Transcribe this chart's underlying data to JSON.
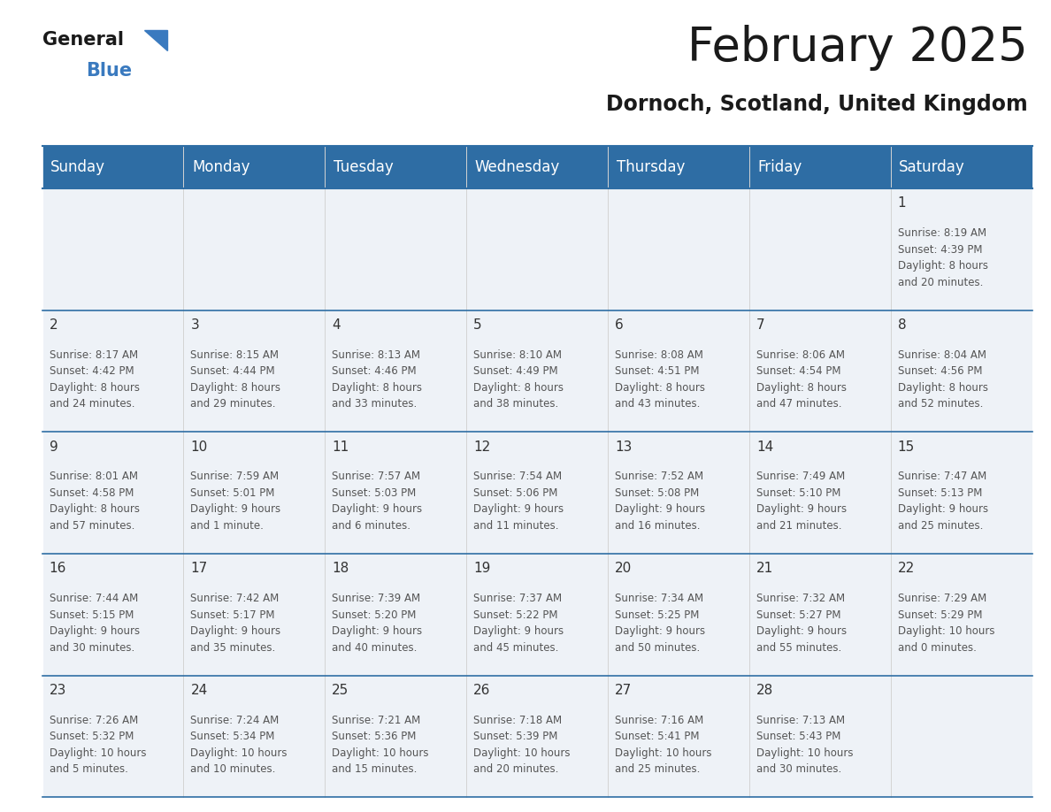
{
  "title": "February 2025",
  "subtitle": "Dornoch, Scotland, United Kingdom",
  "header_color": "#2e6da4",
  "header_text_color": "#ffffff",
  "cell_bg_light": "#eef2f7",
  "cell_bg_white": "#ffffff",
  "border_color": "#2e6da4",
  "text_color": "#333333",
  "info_color": "#555555",
  "day_headers": [
    "Sunday",
    "Monday",
    "Tuesday",
    "Wednesday",
    "Thursday",
    "Friday",
    "Saturday"
  ],
  "title_fontsize": 38,
  "subtitle_fontsize": 17,
  "header_fontsize": 12,
  "cell_num_fontsize": 11,
  "cell_text_fontsize": 8.5,
  "weeks": [
    [
      {
        "day": null,
        "info": null
      },
      {
        "day": null,
        "info": null
      },
      {
        "day": null,
        "info": null
      },
      {
        "day": null,
        "info": null
      },
      {
        "day": null,
        "info": null
      },
      {
        "day": null,
        "info": null
      },
      {
        "day": 1,
        "info": "Sunrise: 8:19 AM\nSunset: 4:39 PM\nDaylight: 8 hours\nand 20 minutes."
      }
    ],
    [
      {
        "day": 2,
        "info": "Sunrise: 8:17 AM\nSunset: 4:42 PM\nDaylight: 8 hours\nand 24 minutes."
      },
      {
        "day": 3,
        "info": "Sunrise: 8:15 AM\nSunset: 4:44 PM\nDaylight: 8 hours\nand 29 minutes."
      },
      {
        "day": 4,
        "info": "Sunrise: 8:13 AM\nSunset: 4:46 PM\nDaylight: 8 hours\nand 33 minutes."
      },
      {
        "day": 5,
        "info": "Sunrise: 8:10 AM\nSunset: 4:49 PM\nDaylight: 8 hours\nand 38 minutes."
      },
      {
        "day": 6,
        "info": "Sunrise: 8:08 AM\nSunset: 4:51 PM\nDaylight: 8 hours\nand 43 minutes."
      },
      {
        "day": 7,
        "info": "Sunrise: 8:06 AM\nSunset: 4:54 PM\nDaylight: 8 hours\nand 47 minutes."
      },
      {
        "day": 8,
        "info": "Sunrise: 8:04 AM\nSunset: 4:56 PM\nDaylight: 8 hours\nand 52 minutes."
      }
    ],
    [
      {
        "day": 9,
        "info": "Sunrise: 8:01 AM\nSunset: 4:58 PM\nDaylight: 8 hours\nand 57 minutes."
      },
      {
        "day": 10,
        "info": "Sunrise: 7:59 AM\nSunset: 5:01 PM\nDaylight: 9 hours\nand 1 minute."
      },
      {
        "day": 11,
        "info": "Sunrise: 7:57 AM\nSunset: 5:03 PM\nDaylight: 9 hours\nand 6 minutes."
      },
      {
        "day": 12,
        "info": "Sunrise: 7:54 AM\nSunset: 5:06 PM\nDaylight: 9 hours\nand 11 minutes."
      },
      {
        "day": 13,
        "info": "Sunrise: 7:52 AM\nSunset: 5:08 PM\nDaylight: 9 hours\nand 16 minutes."
      },
      {
        "day": 14,
        "info": "Sunrise: 7:49 AM\nSunset: 5:10 PM\nDaylight: 9 hours\nand 21 minutes."
      },
      {
        "day": 15,
        "info": "Sunrise: 7:47 AM\nSunset: 5:13 PM\nDaylight: 9 hours\nand 25 minutes."
      }
    ],
    [
      {
        "day": 16,
        "info": "Sunrise: 7:44 AM\nSunset: 5:15 PM\nDaylight: 9 hours\nand 30 minutes."
      },
      {
        "day": 17,
        "info": "Sunrise: 7:42 AM\nSunset: 5:17 PM\nDaylight: 9 hours\nand 35 minutes."
      },
      {
        "day": 18,
        "info": "Sunrise: 7:39 AM\nSunset: 5:20 PM\nDaylight: 9 hours\nand 40 minutes."
      },
      {
        "day": 19,
        "info": "Sunrise: 7:37 AM\nSunset: 5:22 PM\nDaylight: 9 hours\nand 45 minutes."
      },
      {
        "day": 20,
        "info": "Sunrise: 7:34 AM\nSunset: 5:25 PM\nDaylight: 9 hours\nand 50 minutes."
      },
      {
        "day": 21,
        "info": "Sunrise: 7:32 AM\nSunset: 5:27 PM\nDaylight: 9 hours\nand 55 minutes."
      },
      {
        "day": 22,
        "info": "Sunrise: 7:29 AM\nSunset: 5:29 PM\nDaylight: 10 hours\nand 0 minutes."
      }
    ],
    [
      {
        "day": 23,
        "info": "Sunrise: 7:26 AM\nSunset: 5:32 PM\nDaylight: 10 hours\nand 5 minutes."
      },
      {
        "day": 24,
        "info": "Sunrise: 7:24 AM\nSunset: 5:34 PM\nDaylight: 10 hours\nand 10 minutes."
      },
      {
        "day": 25,
        "info": "Sunrise: 7:21 AM\nSunset: 5:36 PM\nDaylight: 10 hours\nand 15 minutes."
      },
      {
        "day": 26,
        "info": "Sunrise: 7:18 AM\nSunset: 5:39 PM\nDaylight: 10 hours\nand 20 minutes."
      },
      {
        "day": 27,
        "info": "Sunrise: 7:16 AM\nSunset: 5:41 PM\nDaylight: 10 hours\nand 25 minutes."
      },
      {
        "day": 28,
        "info": "Sunrise: 7:13 AM\nSunset: 5:43 PM\nDaylight: 10 hours\nand 30 minutes."
      },
      {
        "day": null,
        "info": null
      }
    ]
  ]
}
